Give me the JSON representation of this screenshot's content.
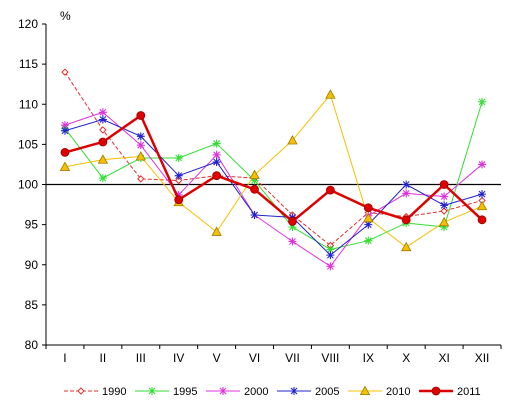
{
  "chart_data": {
    "type": "line",
    "ylabel": "%",
    "ylim": [
      80,
      120
    ],
    "yticks": [
      80,
      85,
      90,
      95,
      100,
      105,
      110,
      115,
      120
    ],
    "reference_line": 100,
    "categories": [
      "I",
      "II",
      "III",
      "IV",
      "V",
      "VI",
      "VII",
      "VIII",
      "IX",
      "X",
      "XI",
      "XII"
    ],
    "legend_position": "bottom",
    "grid": false,
    "series": [
      {
        "name": "1990",
        "color": "#e03030",
        "marker": "diamond-open",
        "dash": true,
        "width": 1,
        "values": [
          114.0,
          106.8,
          100.7,
          100.5,
          101.1,
          100.8,
          96.2,
          92.4,
          96.5,
          96.0,
          96.7,
          98.0
        ]
      },
      {
        "name": "1995",
        "color": "#33dd33",
        "marker": "star",
        "dash": false,
        "width": 1,
        "values": [
          107.0,
          100.8,
          103.3,
          103.3,
          105.1,
          100.5,
          94.7,
          91.9,
          93.0,
          95.2,
          94.7,
          110.3
        ]
      },
      {
        "name": "2000",
        "color": "#dd33dd",
        "marker": "star",
        "dash": false,
        "width": 1,
        "values": [
          107.4,
          109.0,
          104.9,
          98.7,
          103.7,
          96.2,
          92.9,
          89.8,
          96.1,
          98.9,
          98.5,
          102.5
        ]
      },
      {
        "name": "2005",
        "color": "#2222cc",
        "marker": "star",
        "dash": false,
        "width": 1,
        "values": [
          106.7,
          108.1,
          106.0,
          101.1,
          102.8,
          96.2,
          95.9,
          91.2,
          95.0,
          100.0,
          97.4,
          98.8
        ]
      },
      {
        "name": "2010",
        "color": "#f5c000",
        "marker": "triangle",
        "dash": false,
        "width": 1,
        "values": [
          102.2,
          103.1,
          103.5,
          97.8,
          94.1,
          101.2,
          105.5,
          111.2,
          95.8,
          92.2,
          95.3,
          97.3
        ]
      },
      {
        "name": "2011",
        "color": "#dd0000",
        "marker": "circle",
        "dash": false,
        "width": 2.5,
        "values": [
          104.0,
          105.3,
          108.6,
          98.1,
          101.1,
          99.4,
          95.4,
          99.3,
          97.1,
          95.6,
          100.0,
          95.6
        ]
      }
    ]
  }
}
